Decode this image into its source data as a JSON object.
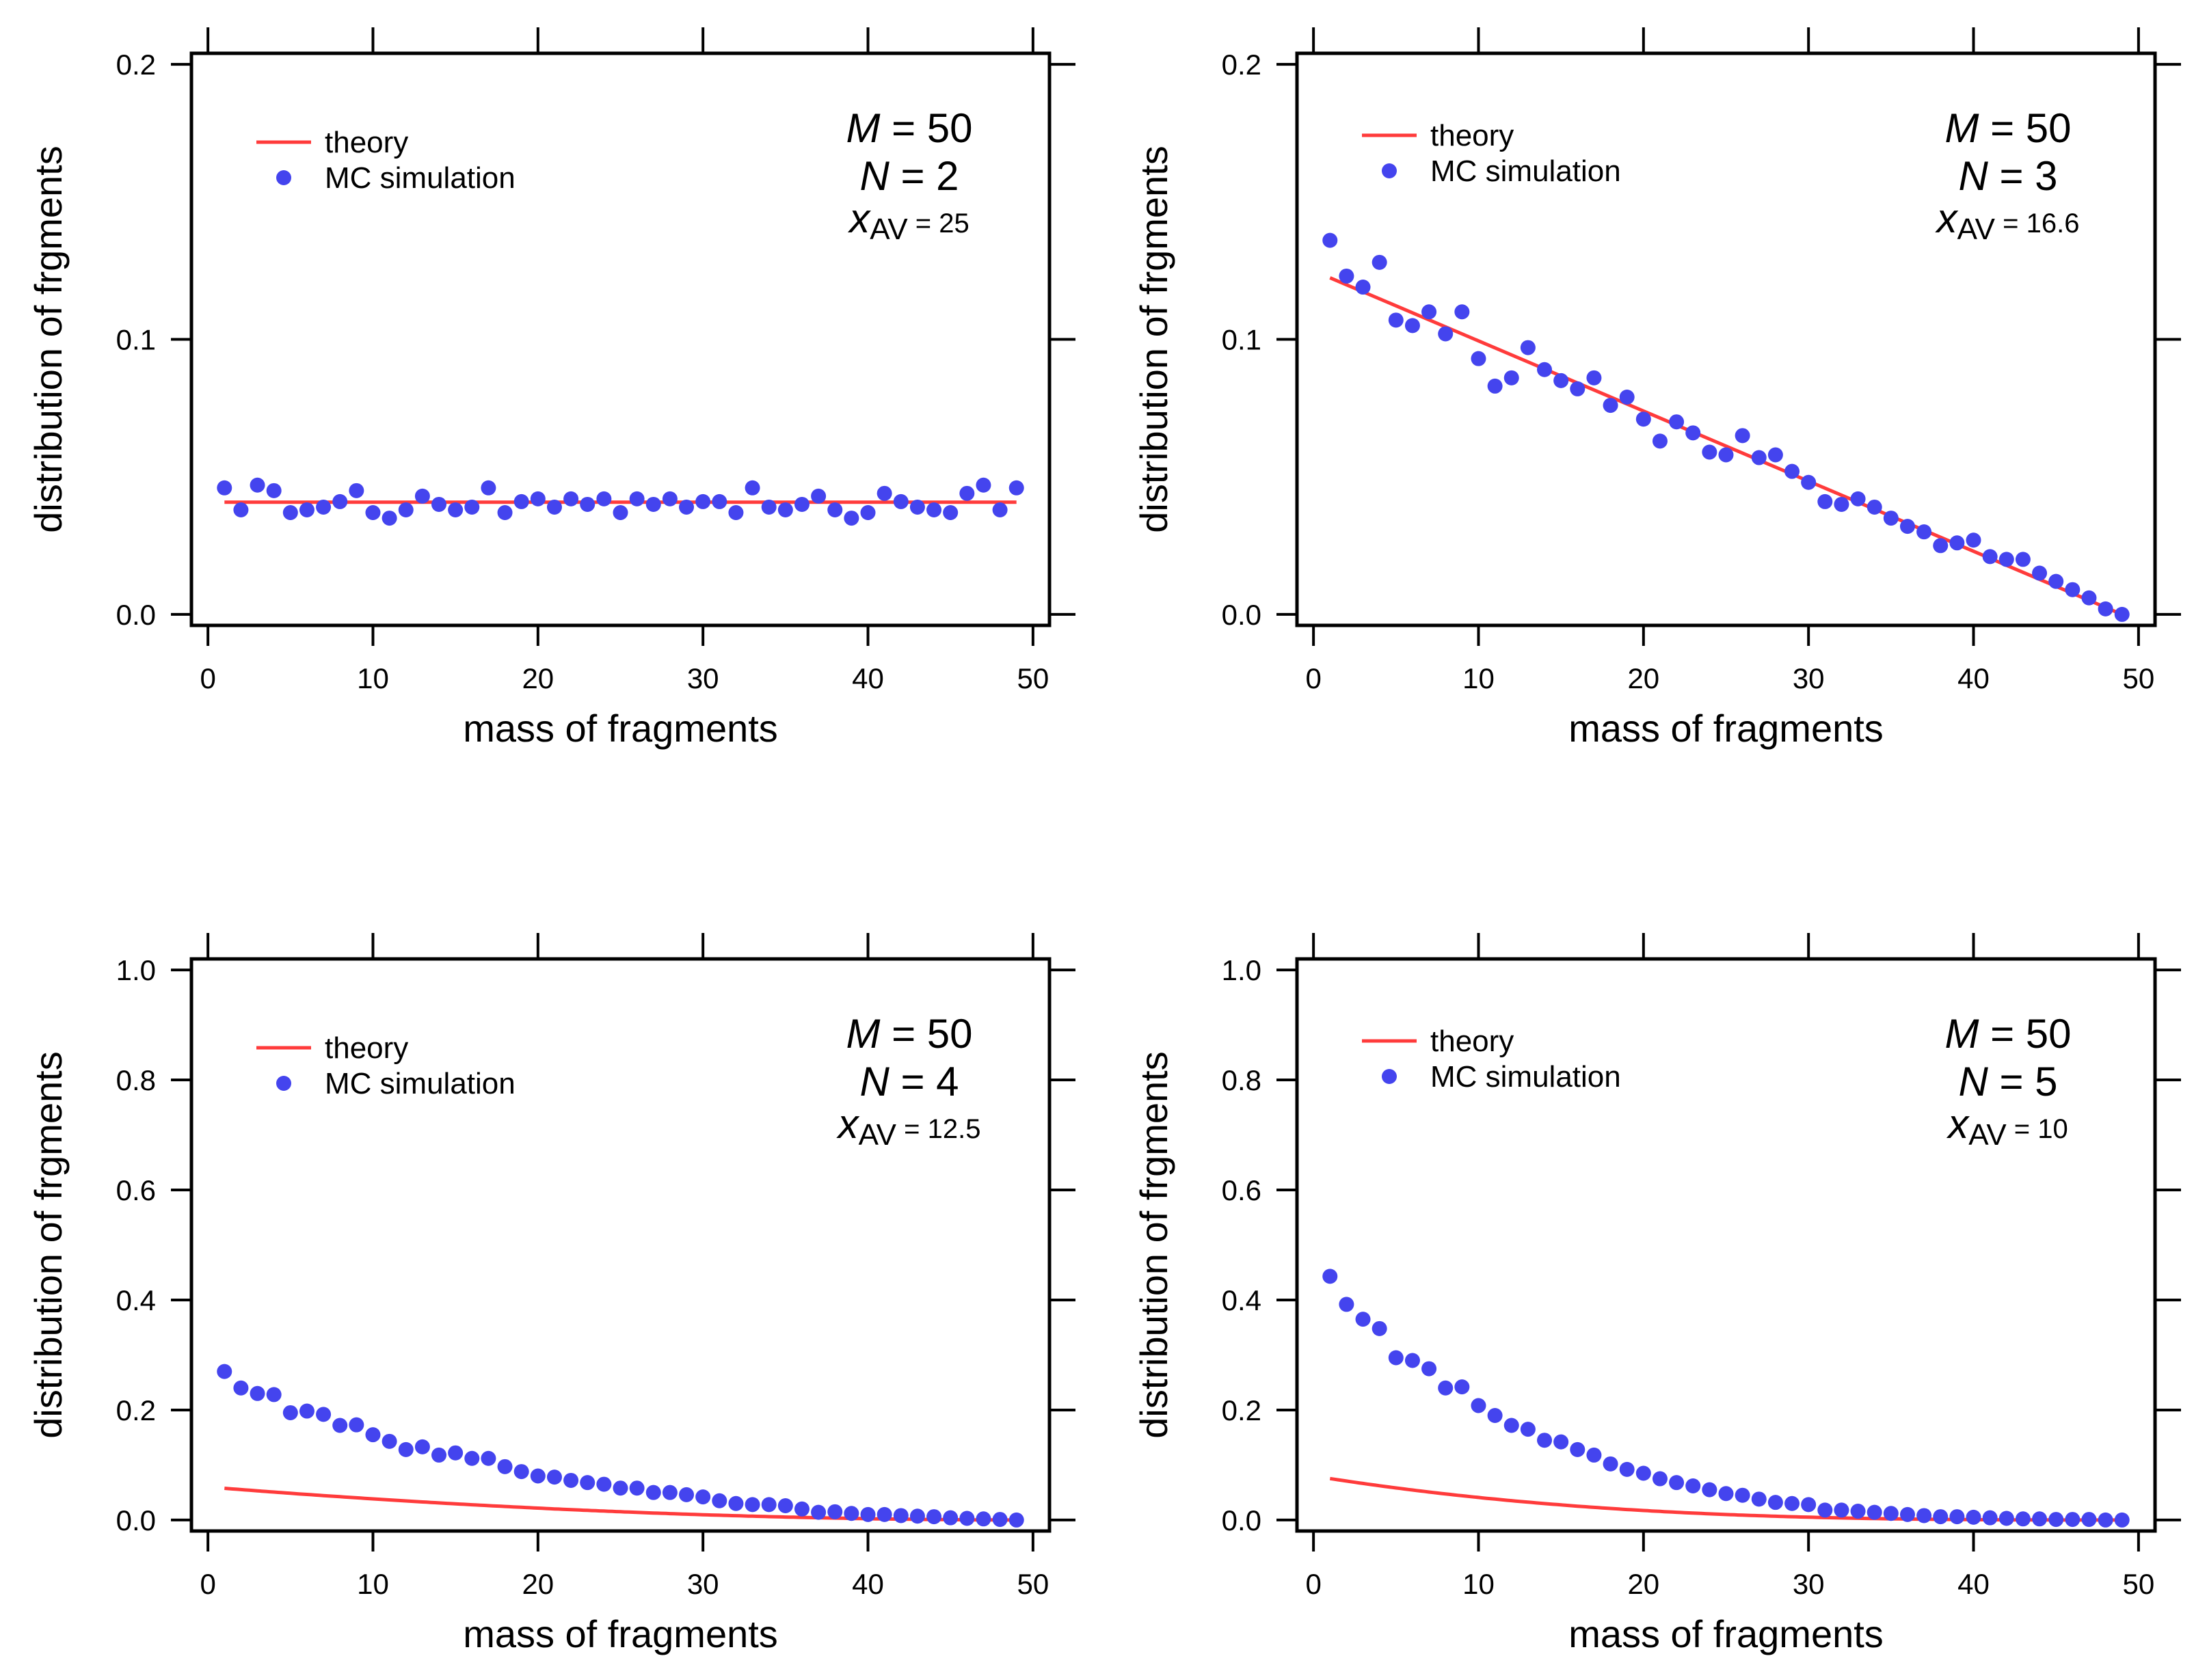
{
  "colors": {
    "theory": "#ff3b3b",
    "mc": "#4444ee",
    "axis": "#000000"
  },
  "chart_data": [
    {
      "type": "scatter",
      "xlabel": "mass of fragments",
      "ylabel": "distribution of frgments",
      "xlim": [
        -1,
        51
      ],
      "ylim": [
        -0.004,
        0.204
      ],
      "xticks": [
        0,
        10,
        20,
        30,
        40,
        50
      ],
      "xtick_labels": [
        "0",
        "10",
        "20",
        "30",
        "40",
        "50"
      ],
      "yticks": [
        0,
        0.1,
        0.2
      ],
      "ytick_labels": [
        "0.0",
        "0.1",
        "0.2"
      ],
      "legend": {
        "theory_label": "theory",
        "mc_label": "MC simulation",
        "position": "top-left"
      },
      "annotation": {
        "M_sym": "M",
        "M_val": " = 50",
        "N_sym": "N",
        "N_val": " = 2",
        "x_sym": "x",
        "x_sub": "AV",
        "x_val": " = 25"
      },
      "series": [
        {
          "name": "theory",
          "kind": "line",
          "x": [
            1,
            49
          ],
          "y": [
            0.0408,
            0.0408
          ]
        },
        {
          "name": "MC simulation",
          "kind": "scatter",
          "x": [
            1,
            2,
            3,
            4,
            5,
            6,
            7,
            8,
            9,
            10,
            11,
            12,
            13,
            14,
            15,
            16,
            17,
            18,
            19,
            20,
            21,
            22,
            23,
            24,
            25,
            26,
            27,
            28,
            29,
            30,
            31,
            32,
            33,
            34,
            35,
            36,
            37,
            38,
            39,
            40,
            41,
            42,
            43,
            44,
            45,
            46,
            47,
            48,
            49
          ],
          "y": [
            0.046,
            0.038,
            0.047,
            0.045,
            0.037,
            0.038,
            0.039,
            0.041,
            0.045,
            0.037,
            0.035,
            0.038,
            0.043,
            0.04,
            0.038,
            0.039,
            0.046,
            0.037,
            0.041,
            0.042,
            0.039,
            0.042,
            0.04,
            0.042,
            0.037,
            0.042,
            0.04,
            0.042,
            0.039,
            0.041,
            0.041,
            0.037,
            0.046,
            0.039,
            0.038,
            0.04,
            0.043,
            0.038,
            0.035,
            0.037,
            0.044,
            0.041,
            0.039,
            0.038,
            0.037,
            0.044,
            0.047,
            0.038,
            0.046
          ]
        }
      ]
    },
    {
      "type": "scatter",
      "xlabel": "mass of fragments",
      "ylabel": "distribution of frgments",
      "xlim": [
        -1,
        51
      ],
      "ylim": [
        -0.004,
        0.204
      ],
      "xticks": [
        0,
        10,
        20,
        30,
        40,
        50
      ],
      "xtick_labels": [
        "0",
        "10",
        "20",
        "30",
        "40",
        "50"
      ],
      "yticks": [
        0,
        0.1,
        0.2
      ],
      "ytick_labels": [
        "0.0",
        "0.1",
        "0.2"
      ],
      "legend": {
        "theory_label": "theory",
        "mc_label": "MC simulation",
        "position": "top-left"
      },
      "annotation": {
        "M_sym": "M",
        "M_val": " = 50",
        "N_sym": "N",
        "N_val": " = 3",
        "x_sym": "x",
        "x_sub": "AV",
        "x_val": " = 16.6"
      },
      "series": [
        {
          "name": "theory",
          "kind": "line",
          "x": [
            1,
            49
          ],
          "y": [
            0.1224,
            0.0
          ]
        },
        {
          "name": "MC simulation",
          "kind": "scatter",
          "x": [
            1,
            2,
            3,
            4,
            5,
            6,
            7,
            8,
            9,
            10,
            11,
            12,
            13,
            14,
            15,
            16,
            17,
            18,
            19,
            20,
            21,
            22,
            23,
            24,
            25,
            26,
            27,
            28,
            29,
            30,
            31,
            32,
            33,
            34,
            35,
            36,
            37,
            38,
            39,
            40,
            41,
            42,
            43,
            44,
            45,
            46,
            47,
            48,
            49
          ],
          "y": [
            0.136,
            0.123,
            0.119,
            0.128,
            0.107,
            0.105,
            0.11,
            0.102,
            0.11,
            0.093,
            0.083,
            0.086,
            0.097,
            0.089,
            0.085,
            0.082,
            0.086,
            0.076,
            0.079,
            0.071,
            0.063,
            0.07,
            0.066,
            0.059,
            0.058,
            0.065,
            0.057,
            0.058,
            0.052,
            0.048,
            0.041,
            0.04,
            0.042,
            0.039,
            0.035,
            0.032,
            0.03,
            0.025,
            0.026,
            0.027,
            0.021,
            0.02,
            0.02,
            0.015,
            0.012,
            0.009,
            0.006,
            0.002,
            0.0
          ]
        }
      ]
    },
    {
      "type": "scatter",
      "xlabel": "mass of fragments",
      "ylabel": "distribution of frgments",
      "xlim": [
        -1,
        51
      ],
      "ylim": [
        -0.02,
        1.02
      ],
      "xticks": [
        0,
        10,
        20,
        30,
        40,
        50
      ],
      "xtick_labels": [
        "0",
        "10",
        "20",
        "30",
        "40",
        "50"
      ],
      "yticks": [
        0,
        0.2,
        0.4,
        0.6,
        0.8,
        1.0
      ],
      "ytick_labels": [
        "0.0",
        "0.2",
        "0.4",
        "0.6",
        "0.8",
        "1.0"
      ],
      "legend": {
        "theory_label": "theory",
        "mc_label": "MC simulation",
        "position": "top-left"
      },
      "annotation": {
        "M_sym": "M",
        "M_val": " = 50",
        "N_sym": "N",
        "N_val": " = 4",
        "x_sym": "x",
        "x_sub": "AV",
        "x_val": " = 12.5"
      },
      "series": [
        {
          "name": "theory",
          "kind": "line",
          "model": {
            "N": 4,
            "M": 50
          }
        },
        {
          "name": "MC simulation",
          "kind": "scatter",
          "x": [
            1,
            2,
            3,
            4,
            5,
            6,
            7,
            8,
            9,
            10,
            11,
            12,
            13,
            14,
            15,
            16,
            17,
            18,
            19,
            20,
            21,
            22,
            23,
            24,
            25,
            26,
            27,
            28,
            29,
            30,
            31,
            32,
            33,
            34,
            35,
            36,
            37,
            38,
            39,
            40,
            41,
            42,
            43,
            44,
            45,
            46,
            47,
            48,
            49
          ],
          "y": [
            0.27,
            0.24,
            0.23,
            0.228,
            0.195,
            0.198,
            0.192,
            0.172,
            0.173,
            0.155,
            0.143,
            0.128,
            0.133,
            0.118,
            0.122,
            0.112,
            0.112,
            0.097,
            0.088,
            0.08,
            0.078,
            0.072,
            0.068,
            0.065,
            0.058,
            0.058,
            0.05,
            0.05,
            0.046,
            0.042,
            0.035,
            0.03,
            0.028,
            0.028,
            0.026,
            0.02,
            0.014,
            0.015,
            0.012,
            0.01,
            0.01,
            0.008,
            0.007,
            0.006,
            0.004,
            0.003,
            0.002,
            0.001,
            0.0
          ]
        }
      ]
    },
    {
      "type": "scatter",
      "xlabel": "mass of fragments",
      "ylabel": "distribution of frgments",
      "xlim": [
        -1,
        51
      ],
      "ylim": [
        -0.02,
        1.02
      ],
      "xticks": [
        0,
        10,
        20,
        30,
        40,
        50
      ],
      "xtick_labels": [
        "0",
        "10",
        "20",
        "30",
        "40",
        "50"
      ],
      "yticks": [
        0,
        0.2,
        0.4,
        0.6,
        0.8,
        1.0
      ],
      "ytick_labels": [
        "0.0",
        "0.2",
        "0.4",
        "0.6",
        "0.8",
        "1.0"
      ],
      "legend": {
        "theory_label": "theory",
        "mc_label": "MC simulation",
        "position": "top-left"
      },
      "annotation": {
        "M_sym": "M",
        "M_val": " = 50",
        "N_sym": "N",
        "N_val": " = 5",
        "x_sym": "x",
        "x_sub": "AV",
        "x_val": " = 10"
      },
      "series": [
        {
          "name": "theory",
          "kind": "line",
          "model": {
            "N": 5,
            "M": 50
          }
        },
        {
          "name": "MC simulation",
          "kind": "scatter",
          "x": [
            1,
            2,
            3,
            4,
            5,
            6,
            7,
            8,
            9,
            10,
            11,
            12,
            13,
            14,
            15,
            16,
            17,
            18,
            19,
            20,
            21,
            22,
            23,
            24,
            25,
            26,
            27,
            28,
            29,
            30,
            31,
            32,
            33,
            34,
            35,
            36,
            37,
            38,
            39,
            40,
            41,
            42,
            43,
            44,
            45,
            46,
            47,
            48,
            49
          ],
          "y": [
            0.443,
            0.392,
            0.365,
            0.348,
            0.295,
            0.29,
            0.275,
            0.24,
            0.242,
            0.208,
            0.19,
            0.172,
            0.165,
            0.145,
            0.142,
            0.128,
            0.118,
            0.102,
            0.092,
            0.085,
            0.075,
            0.068,
            0.062,
            0.055,
            0.048,
            0.045,
            0.038,
            0.032,
            0.03,
            0.028,
            0.018,
            0.018,
            0.016,
            0.014,
            0.012,
            0.01,
            0.008,
            0.006,
            0.006,
            0.005,
            0.004,
            0.003,
            0.002,
            0.002,
            0.001,
            0.001,
            0.001,
            0.0,
            0.0
          ]
        }
      ]
    }
  ]
}
